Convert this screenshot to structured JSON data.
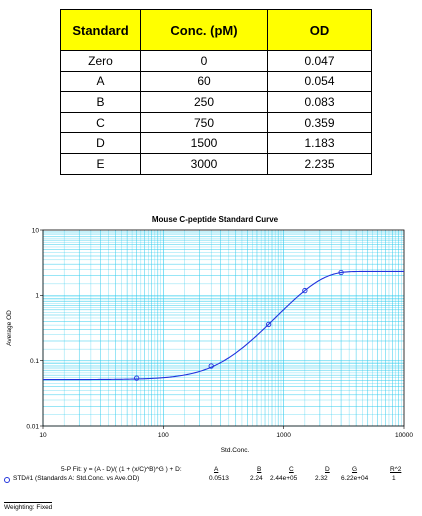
{
  "table": {
    "headers": [
      "Standard",
      "Conc. (pM)",
      "OD"
    ],
    "rows": [
      [
        "Zero",
        "0",
        "0.047"
      ],
      [
        "A",
        "60",
        "0.054"
      ],
      [
        "B",
        "250",
        "0.083"
      ],
      [
        "C",
        "750",
        "0.359"
      ],
      [
        "D",
        "1500",
        "1.183"
      ],
      [
        "E",
        "3000",
        "2.235"
      ]
    ]
  },
  "chart_data": {
    "type": "scatter",
    "title": "Mouse C-peptide Standard Curve",
    "xlabel": "Std.Conc.",
    "ylabel": "Average OD",
    "x_scale": "log",
    "y_scale": "log",
    "xlim": [
      10,
      10000
    ],
    "ylim": [
      0.01,
      10
    ],
    "x_ticks": [
      "10",
      "100",
      "1000",
      "10000"
    ],
    "y_ticks": [
      "0.01",
      "0.1",
      "1",
      "10"
    ],
    "grid": true,
    "series": [
      {
        "name": "STD#1 (Standards A: Std.Conc. vs Ave.OD)",
        "points": [
          {
            "x": 60,
            "y": 0.054
          },
          {
            "x": 250,
            "y": 0.083
          },
          {
            "x": 750,
            "y": 0.359
          },
          {
            "x": 1500,
            "y": 1.183
          },
          {
            "x": 3000,
            "y": 2.235
          }
        ]
      }
    ],
    "fit": {
      "equation": "5-P Fit: y = (A - D)/( (1 + (x/C)^B)^G ) + D:",
      "params": [
        {
          "name": "A",
          "value": 0.0513,
          "label": "0.0513"
        },
        {
          "name": "B",
          "value": 2.24,
          "label": "2.24"
        },
        {
          "name": "C",
          "value": 244000,
          "label": "2.44e+05"
        },
        {
          "name": "D",
          "value": 2.32,
          "label": "2.32"
        },
        {
          "name": "G",
          "value": 62200,
          "label": "6.22e+04"
        },
        {
          "name": "R^2",
          "value": 1,
          "label": "1"
        }
      ]
    },
    "weighting": "Weighting: Fixed",
    "colors": {
      "grid": "#33ccee",
      "series": "#2233dd"
    }
  }
}
